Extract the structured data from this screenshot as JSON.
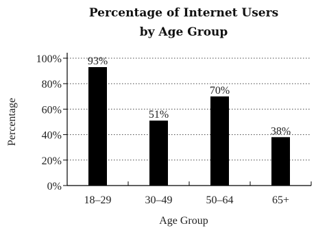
{
  "chart_data": {
    "type": "bar",
    "title": "Percentage of Internet Users",
    "subtitle": "by Age Group",
    "xlabel": "Age Group",
    "ylabel": "Percentage",
    "categories": [
      "18–29",
      "30–49",
      "50–64",
      "65+"
    ],
    "values": [
      93,
      51,
      70,
      38
    ],
    "data_labels": [
      "93%",
      "51%",
      "70%",
      "38%"
    ],
    "ylim": [
      0,
      100
    ],
    "yticks": [
      0,
      20,
      40,
      60,
      80,
      100
    ],
    "ytick_labels": [
      "0%",
      "20%",
      "40%",
      "60%",
      "80%",
      "100%"
    ],
    "grid": "horizontal dotted",
    "bar_color": "#000000"
  }
}
